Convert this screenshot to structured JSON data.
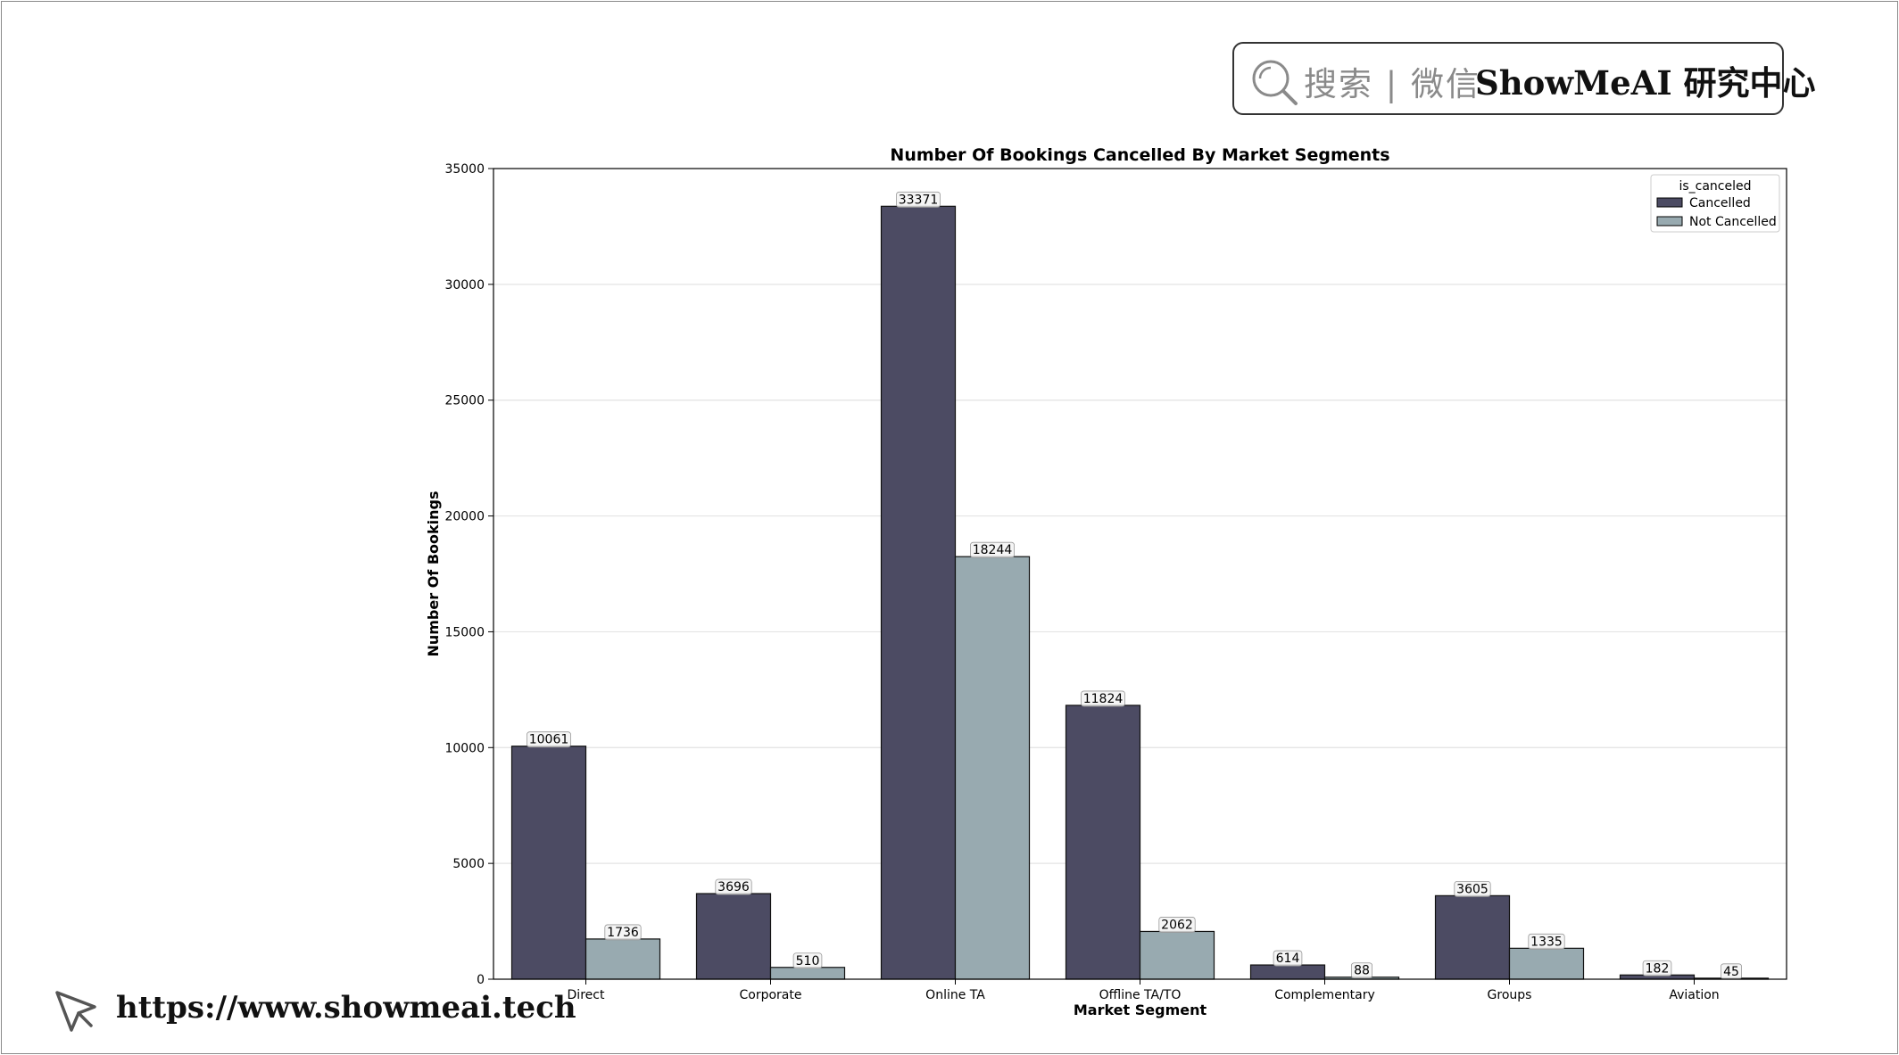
{
  "brand": {
    "search_label": "搜索 | 微信",
    "name": "ShowMeAI 研究中心",
    "icon": "search-icon"
  },
  "footer": {
    "url": "https://www.showmeai.tech",
    "icon": "cursor-icon"
  },
  "chart_data": {
    "type": "bar",
    "title": "Number Of Bookings Cancelled By Market Segments",
    "xlabel": "Market Segment",
    "ylabel": "Number Of Bookings",
    "categories": [
      "Direct",
      "Corporate",
      "Online TA",
      "Offline TA/TO",
      "Complementary",
      "Groups",
      "Aviation"
    ],
    "ylim": [
      0,
      35000
    ],
    "yticks": [
      0,
      5000,
      10000,
      15000,
      20000,
      25000,
      30000,
      35000
    ],
    "grid": "horizontal",
    "legend": {
      "title": "is_canceled",
      "placement": "top-right"
    },
    "series": [
      {
        "name": "Cancelled",
        "color": "#4c4b63",
        "values": [
          10061,
          3696,
          33371,
          11824,
          614,
          3605,
          182
        ]
      },
      {
        "name": "Not Cancelled",
        "color": "#98aab0",
        "values": [
          1736,
          510,
          18244,
          2062,
          88,
          1335,
          45
        ]
      }
    ]
  }
}
